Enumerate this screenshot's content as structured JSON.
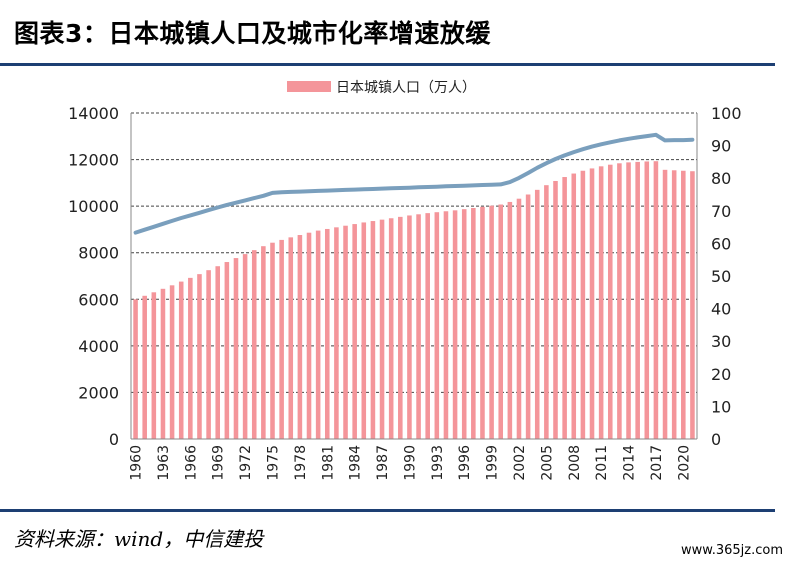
{
  "header": {
    "title": "图表3：日本城镇人口及城市化率增速放缓"
  },
  "footer": {
    "source": "资料来源：wind，中信建投",
    "watermark": "www.365jz.com"
  },
  "colors": {
    "bar": "#f4959a",
    "line": "#7a9fbd",
    "grid": "#444444",
    "rule": "#1d3f73"
  },
  "chart_data": {
    "type": "bar",
    "title": "",
    "legend": {
      "position": "top-center",
      "entries": [
        "日本城镇人口（万人）"
      ]
    },
    "x": [
      1960,
      1961,
      1962,
      1963,
      1964,
      1965,
      1966,
      1967,
      1968,
      1969,
      1970,
      1971,
      1972,
      1973,
      1974,
      1975,
      1976,
      1977,
      1978,
      1979,
      1980,
      1981,
      1982,
      1983,
      1984,
      1985,
      1986,
      1987,
      1988,
      1989,
      1990,
      1991,
      1992,
      1993,
      1994,
      1995,
      1996,
      1997,
      1998,
      1999,
      2000,
      2001,
      2002,
      2003,
      2004,
      2005,
      2006,
      2007,
      2008,
      2009,
      2010,
      2011,
      2012,
      2013,
      2014,
      2015,
      2016,
      2017,
      2018,
      2019,
      2020,
      2021
    ],
    "x_tick_labels": [
      "1960",
      "1963",
      "1966",
      "1969",
      "1972",
      "1975",
      "1978",
      "1981",
      "1984",
      "1987",
      "1990",
      "1993",
      "1996",
      "1999",
      "2002",
      "2005",
      "2008",
      "2011",
      "2014",
      "2017",
      "2020"
    ],
    "y_left": {
      "ylim": [
        0,
        14000
      ],
      "ticks": [
        0,
        2000,
        4000,
        6000,
        8000,
        10000,
        12000,
        14000
      ]
    },
    "y_right": {
      "ylim": [
        0,
        100
      ],
      "ticks": [
        0,
        10,
        20,
        30,
        40,
        50,
        60,
        70,
        80,
        90,
        100
      ]
    },
    "grid": true,
    "series": [
      {
        "name": "日本城镇人口（万人）",
        "type": "bar",
        "axis": "left",
        "values": [
          6000,
          6150,
          6300,
          6450,
          6600,
          6760,
          6920,
          7080,
          7250,
          7420,
          7600,
          7770,
          7940,
          8110,
          8280,
          8430,
          8550,
          8660,
          8760,
          8860,
          8950,
          9020,
          9090,
          9160,
          9230,
          9300,
          9360,
          9420,
          9480,
          9540,
          9600,
          9650,
          9700,
          9740,
          9780,
          9820,
          9870,
          9920,
          9970,
          10020,
          10070,
          10180,
          10320,
          10500,
          10700,
          10900,
          11080,
          11250,
          11400,
          11520,
          11620,
          11710,
          11780,
          11840,
          11880,
          11900,
          11920,
          11930,
          11560,
          11540,
          11520,
          11500
        ]
      },
      {
        "name": "",
        "type": "line",
        "axis": "right",
        "values": [
          63.3,
          64.2,
          65.1,
          66.0,
          66.9,
          67.8,
          68.6,
          69.4,
          70.2,
          71.0,
          71.8,
          72.5,
          73.2,
          73.9,
          74.6,
          75.5,
          75.7,
          75.8,
          75.9,
          76.0,
          76.1,
          76.2,
          76.3,
          76.4,
          76.5,
          76.6,
          76.7,
          76.8,
          76.9,
          77.0,
          77.1,
          77.2,
          77.3,
          77.4,
          77.5,
          77.6,
          77.7,
          77.8,
          77.9,
          78.0,
          78.1,
          78.8,
          80.1,
          81.6,
          83.2,
          84.6,
          85.9,
          87.0,
          88.0,
          88.9,
          89.7,
          90.4,
          91.0,
          91.6,
          92.1,
          92.5,
          92.9,
          93.3,
          91.6,
          91.7,
          91.7,
          91.8
        ]
      }
    ]
  }
}
